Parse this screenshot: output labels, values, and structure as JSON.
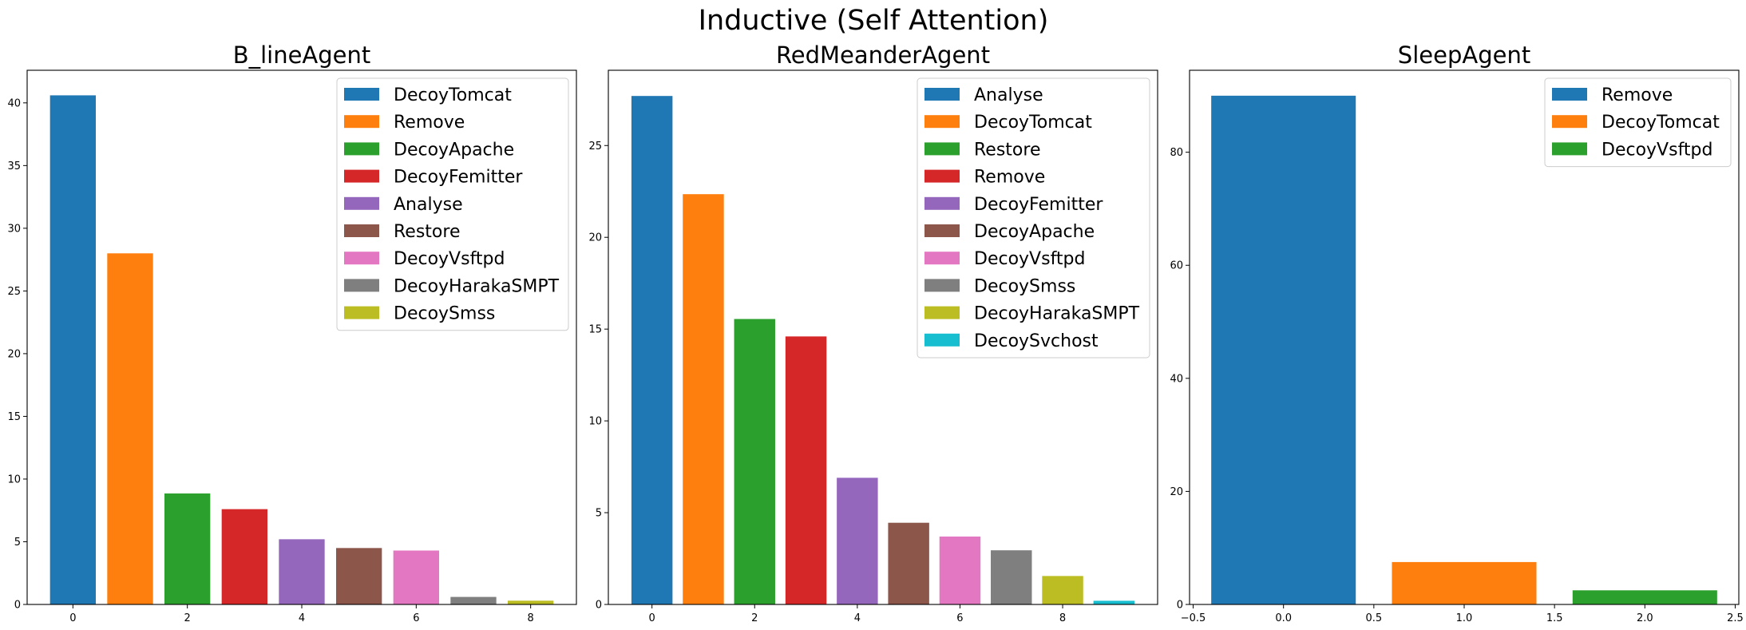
{
  "title": "Inductive (Self Attention)",
  "colors": [
    "#1f77b4",
    "#ff7f0e",
    "#2ca02c",
    "#d62728",
    "#9467bd",
    "#8c564b",
    "#e377c2",
    "#7f7f7f",
    "#bcbd22",
    "#17becf"
  ],
  "chart_data": [
    {
      "type": "bar",
      "title": "B_lineAgent",
      "x": [
        0,
        1,
        2,
        3,
        4,
        5,
        6,
        7,
        8
      ],
      "values": [
        40.6,
        28.0,
        8.85,
        7.6,
        5.2,
        4.5,
        4.3,
        0.6,
        0.3
      ],
      "legend": [
        "DecoyTomcat",
        "Remove",
        "DecoyApache",
        "DecoyFemitter",
        "Analyse",
        "Restore",
        "DecoyVsftpd",
        "DecoyHarakaSMPT",
        "DecoySmss"
      ],
      "xlim": [
        -0.8,
        8.8
      ],
      "ylim": [
        0,
        42.6
      ],
      "xticks": [
        0,
        2,
        4,
        6,
        8
      ],
      "xtick_labels": [
        "0",
        "2",
        "4",
        "6",
        "8"
      ],
      "yticks": [
        0,
        5,
        10,
        15,
        20,
        25,
        30,
        35,
        40
      ],
      "ytick_labels": [
        "0",
        "5",
        "10",
        "15",
        "20",
        "25",
        "30",
        "35",
        "40"
      ],
      "grid": false,
      "legend_position": "top-right"
    },
    {
      "type": "bar",
      "title": "RedMeanderAgent",
      "x": [
        0,
        1,
        2,
        3,
        4,
        5,
        6,
        7,
        8,
        9
      ],
      "values": [
        27.7,
        22.35,
        15.55,
        14.6,
        6.9,
        4.45,
        3.7,
        2.95,
        1.55,
        0.2
      ],
      "legend": [
        "Analyse",
        "DecoyTomcat",
        "Restore",
        "Remove",
        "DecoyFemitter",
        "DecoyApache",
        "DecoyVsftpd",
        "DecoySmss",
        "DecoyHarakaSMPT",
        "DecoySvchost"
      ],
      "xlim": [
        -0.85,
        9.85
      ],
      "ylim": [
        0,
        29.1
      ],
      "xticks": [
        0,
        2,
        4,
        6,
        8
      ],
      "xtick_labels": [
        "0",
        "2",
        "4",
        "6",
        "8"
      ],
      "yticks": [
        0,
        5,
        10,
        15,
        20,
        25
      ],
      "ytick_labels": [
        "0",
        "5",
        "10",
        "15",
        "20",
        "25"
      ],
      "grid": false,
      "legend_position": "top-right"
    },
    {
      "type": "bar",
      "title": "SleepAgent",
      "x": [
        0,
        1,
        2
      ],
      "values": [
        90.0,
        7.5,
        2.5
      ],
      "legend": [
        "Remove",
        "DecoyTomcat",
        "DecoyVsftpd"
      ],
      "xlim": [
        -0.52,
        2.52
      ],
      "ylim": [
        0,
        94.5
      ],
      "xticks": [
        -0.5,
        0.0,
        0.5,
        1.0,
        1.5,
        2.0,
        2.5
      ],
      "xtick_labels": [
        "−0.5",
        "0.0",
        "0.5",
        "1.0",
        "1.5",
        "2.0",
        "2.5"
      ],
      "yticks": [
        0,
        20,
        40,
        60,
        80
      ],
      "ytick_labels": [
        "0",
        "20",
        "40",
        "60",
        "80"
      ],
      "grid": false,
      "legend_position": "top-right"
    }
  ]
}
